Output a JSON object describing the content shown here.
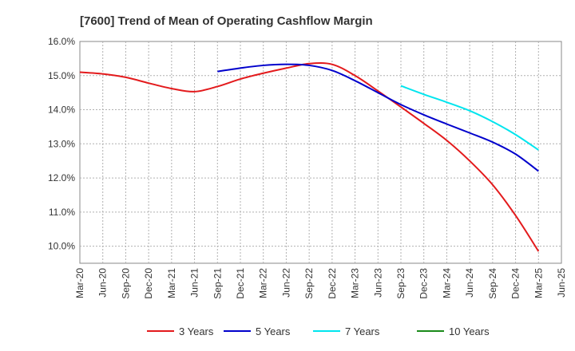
{
  "chart_data": {
    "type": "line",
    "title": "[7600]  Trend of Mean of Operating Cashflow Margin",
    "xlabel": "",
    "ylabel": "",
    "ylim": [
      9.5,
      16.0
    ],
    "yticks": [
      "10.0%",
      "11.0%",
      "12.0%",
      "13.0%",
      "14.0%",
      "15.0%",
      "16.0%"
    ],
    "ytick_values": [
      10,
      11,
      12,
      13,
      14,
      15,
      16
    ],
    "grid": true,
    "legend_position": "bottom",
    "x": [
      "Mar-20",
      "Jun-20",
      "Sep-20",
      "Dec-20",
      "Mar-21",
      "Jun-21",
      "Sep-21",
      "Dec-21",
      "Mar-22",
      "Jun-22",
      "Sep-22",
      "Dec-22",
      "Mar-23",
      "Jun-23",
      "Sep-23",
      "Dec-23",
      "Mar-24",
      "Jun-24",
      "Sep-24",
      "Dec-24",
      "Mar-25",
      "Jun-25"
    ],
    "series": [
      {
        "name": "3 Years",
        "color": "#e31a1c",
        "values": [
          15.1,
          15.05,
          14.95,
          14.78,
          14.62,
          14.53,
          14.68,
          14.9,
          15.07,
          15.22,
          15.35,
          15.33,
          15.0,
          14.55,
          14.08,
          13.6,
          13.1,
          12.5,
          11.8,
          10.9,
          9.85,
          null
        ]
      },
      {
        "name": "5 Years",
        "color": "#0000cc",
        "values": [
          null,
          null,
          null,
          null,
          null,
          null,
          15.12,
          15.22,
          15.3,
          15.33,
          15.3,
          15.15,
          14.85,
          14.5,
          14.15,
          13.85,
          13.58,
          13.32,
          13.05,
          12.7,
          12.2,
          null
        ]
      },
      {
        "name": "7 Years",
        "color": "#00e5ee",
        "values": [
          null,
          null,
          null,
          null,
          null,
          null,
          null,
          null,
          null,
          null,
          null,
          null,
          null,
          null,
          14.7,
          14.45,
          14.22,
          13.97,
          13.65,
          13.27,
          12.82,
          null
        ]
      },
      {
        "name": "10 Years",
        "color": "#1a8a1a",
        "values": [
          null,
          null,
          null,
          null,
          null,
          null,
          null,
          null,
          null,
          null,
          null,
          null,
          null,
          null,
          null,
          null,
          null,
          null,
          null,
          null,
          null,
          null
        ]
      }
    ]
  }
}
